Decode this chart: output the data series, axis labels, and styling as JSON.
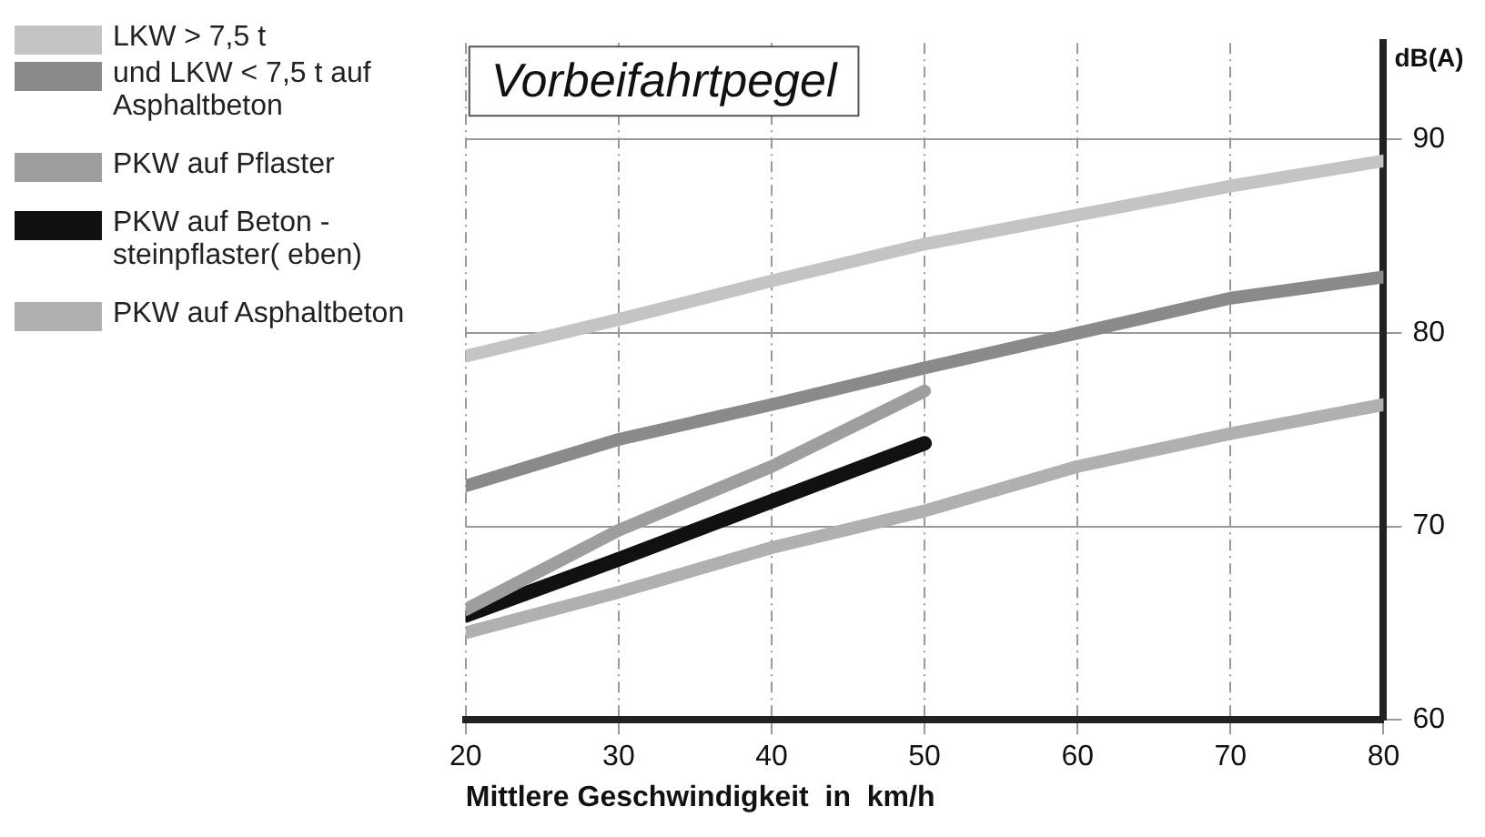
{
  "chart_data": {
    "type": "line",
    "title": "Vorbeifahrtpegel",
    "xlabel": "Mittlere Geschwindigkeit  in  km/h",
    "ylabel": "dB(A)",
    "x": [
      20,
      30,
      40,
      50,
      60,
      70,
      80
    ],
    "series": [
      {
        "name": "LKW > 7,5 t",
        "color": "#c4c4c4",
        "values": [
          78.8,
          80.7,
          82.7,
          84.6,
          86.1,
          87.6,
          88.9
        ]
      },
      {
        "name": "und LKW < 7,5 t auf Asphaltbeton",
        "color": "#8a8a8a",
        "values": [
          72.1,
          74.5,
          76.3,
          78.2,
          80.0,
          81.8,
          82.9
        ]
      },
      {
        "name": "PKW auf Pflaster",
        "color": "#9e9e9e",
        "values": [
          65.7,
          69.8,
          73.1,
          77.0,
          null,
          null,
          null
        ]
      },
      {
        "name": "PKW auf Beton - steinpflaster( eben)",
        "color": "#111111",
        "values": [
          65.4,
          68.3,
          71.3,
          74.3,
          null,
          null,
          null
        ]
      },
      {
        "name": "PKW auf Asphaltbeton",
        "color": "#b0b0b0",
        "values": [
          64.5,
          66.6,
          68.9,
          70.8,
          73.1,
          74.8,
          76.3
        ]
      }
    ],
    "xlim": [
      20,
      80
    ],
    "xticks": [
      20,
      30,
      40,
      50,
      60,
      70,
      80
    ],
    "ylim": [
      60,
      95
    ],
    "yticks": [
      60,
      70,
      80,
      90
    ],
    "grid": true,
    "legend": "left",
    "marker": "none",
    "line_style": "solid"
  }
}
